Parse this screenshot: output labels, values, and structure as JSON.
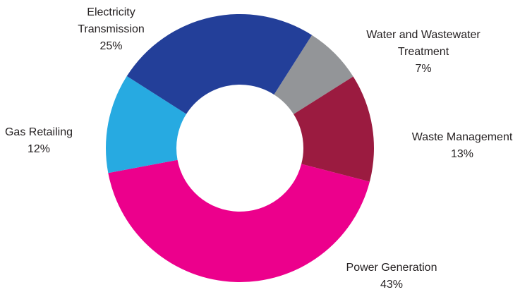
{
  "chart_data": {
    "type": "donut",
    "categories": [
      "Water and Wastewater Treatment",
      "Waste Management",
      "Power Generation",
      "Gas Retailing",
      "Electricity Transmission"
    ],
    "values": [
      7,
      13,
      43,
      12,
      25
    ],
    "value_labels": [
      "7%",
      "13%",
      "43%",
      "12%",
      "25%"
    ],
    "colors": [
      "#939598",
      "#9b1b40",
      "#ec008c",
      "#27aae1",
      "#233f99"
    ]
  }
}
